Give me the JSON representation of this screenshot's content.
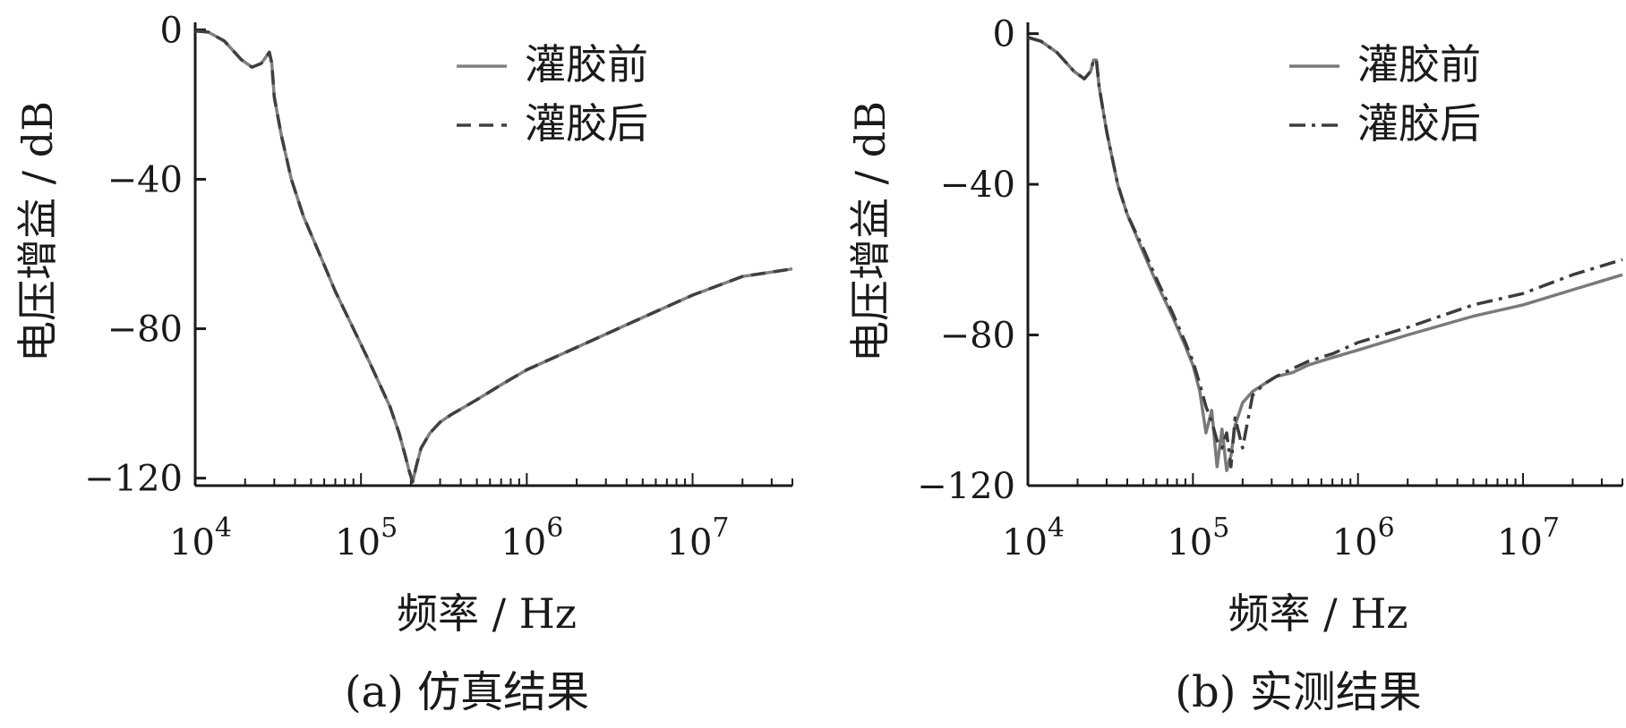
{
  "chart_data": [
    {
      "type": "line",
      "caption": "(a)  仿真结果",
      "xlabel": "频率 / Hz",
      "ylabel": "电压增益 / dB",
      "x_scale": "log",
      "xlim": [
        10000,
        40000000
      ],
      "ylim": [
        -122,
        2
      ],
      "xticks": [
        10000,
        100000,
        1000000,
        10000000
      ],
      "xtick_labels": [
        {
          "base": "10",
          "exp": "4"
        },
        {
          "base": "10",
          "exp": "5"
        },
        {
          "base": "10",
          "exp": "6"
        },
        {
          "base": "10",
          "exp": "7"
        }
      ],
      "yticks": [
        0,
        -40,
        -80,
        -120
      ],
      "ytick_labels": [
        "0",
        "−40",
        "−80",
        "−120"
      ],
      "legend_position": "top-right",
      "series": [
        {
          "name": "灌胶前",
          "style": "solid",
          "color": "#808080",
          "x": [
            10000,
            12000,
            15000,
            19000,
            22000,
            25000,
            27000,
            28000,
            29000,
            30000,
            33000,
            38000,
            45000,
            55000,
            70000,
            90000,
            110000,
            130000,
            150000,
            170000,
            185000,
            195000,
            205000,
            215000,
            230000,
            260000,
            300000,
            350000,
            400000,
            500000,
            700000,
            1000000,
            2000000,
            5000000,
            10000000,
            20000000,
            40000000
          ],
          "y": [
            -0.3,
            -0.6,
            -3,
            -8,
            -10,
            -9,
            -7,
            -6,
            -9,
            -18,
            -28,
            -40,
            -50,
            -59,
            -70,
            -80,
            -88,
            -95,
            -101,
            -108,
            -114,
            -118,
            -121,
            -117,
            -112,
            -108,
            -105,
            -103,
            -101.5,
            -99,
            -95,
            -91,
            -85,
            -77,
            -71,
            -66,
            -64
          ]
        },
        {
          "name": "灌胶后",
          "style": "dashed",
          "color": "#404040",
          "x": [
            10000,
            12000,
            15000,
            19000,
            22000,
            25000,
            27000,
            28000,
            29000,
            30000,
            33000,
            38000,
            45000,
            55000,
            70000,
            90000,
            110000,
            130000,
            150000,
            170000,
            185000,
            195000,
            205000,
            215000,
            230000,
            260000,
            300000,
            350000,
            400000,
            500000,
            700000,
            1000000,
            2000000,
            5000000,
            10000000,
            20000000,
            40000000
          ],
          "y": [
            -0.3,
            -0.6,
            -3,
            -8,
            -10,
            -9,
            -7,
            -6,
            -9,
            -18,
            -28,
            -40,
            -50,
            -59,
            -70,
            -80,
            -88,
            -95,
            -101,
            -108,
            -114,
            -118,
            -121,
            -117,
            -112,
            -108,
            -105,
            -103,
            -101.5,
            -99,
            -95,
            -91,
            -85,
            -77,
            -71,
            -66,
            -64
          ]
        }
      ]
    },
    {
      "type": "line",
      "caption": "(b)  实测结果",
      "xlabel": "频率 / Hz",
      "ylabel": "电压增益 / dB",
      "x_scale": "log",
      "xlim": [
        10000,
        40000000
      ],
      "ylim": [
        -120,
        3
      ],
      "xticks": [
        10000,
        100000,
        1000000,
        10000000
      ],
      "xtick_labels": [
        {
          "base": "10",
          "exp": "4"
        },
        {
          "base": "10",
          "exp": "5"
        },
        {
          "base": "10",
          "exp": "6"
        },
        {
          "base": "10",
          "exp": "7"
        }
      ],
      "yticks": [
        0,
        -40,
        -80,
        -120
      ],
      "ytick_labels": [
        "0",
        "−40",
        "−80",
        "−120"
      ],
      "legend_position": "top-right",
      "series": [
        {
          "name": "灌胶前",
          "style": "solid",
          "color": "#7a7a7a",
          "x": [
            10000,
            12000,
            15000,
            19000,
            22000,
            24000,
            25000,
            26000,
            27000,
            30000,
            35000,
            40000,
            50000,
            60000,
            75000,
            90000,
            100000,
            110000,
            120000,
            130000,
            140000,
            150000,
            160000,
            170000,
            180000,
            200000,
            230000,
            270000,
            320000,
            400000,
            500000,
            700000,
            1000000,
            2000000,
            5000000,
            10000000,
            20000000,
            40000000
          ],
          "y": [
            -1,
            -2,
            -5,
            -10,
            -12,
            -10,
            -7,
            -7,
            -14,
            -26,
            -40,
            -48,
            -58,
            -66,
            -75,
            -83,
            -88,
            -95,
            -106,
            -100,
            -115,
            -105,
            -116,
            -112,
            -104,
            -98,
            -95,
            -93,
            -91,
            -90,
            -88,
            -86,
            -84,
            -80,
            -75,
            -72,
            -68,
            -64
          ]
        },
        {
          "name": "灌胶后",
          "style": "dashdot",
          "color": "#3c3c3c",
          "x": [
            10000,
            12000,
            15000,
            19000,
            22000,
            24000,
            25000,
            26000,
            27000,
            30000,
            35000,
            40000,
            50000,
            60000,
            75000,
            90000,
            100000,
            110000,
            120000,
            130000,
            140000,
            150000,
            160000,
            170000,
            180000,
            200000,
            230000,
            270000,
            320000,
            400000,
            500000,
            700000,
            1000000,
            2000000,
            5000000,
            10000000,
            20000000,
            40000000
          ],
          "y": [
            -1,
            -2,
            -5,
            -10,
            -12,
            -10,
            -7,
            -7,
            -14,
            -26,
            -40,
            -48,
            -57,
            -65,
            -74,
            -82,
            -87,
            -93,
            -99,
            -103,
            -108,
            -110,
            -106,
            -115,
            -102,
            -110,
            -96,
            -93,
            -91,
            -89,
            -87,
            -85,
            -82,
            -78,
            -72,
            -69,
            -64,
            -60
          ]
        }
      ]
    }
  ]
}
